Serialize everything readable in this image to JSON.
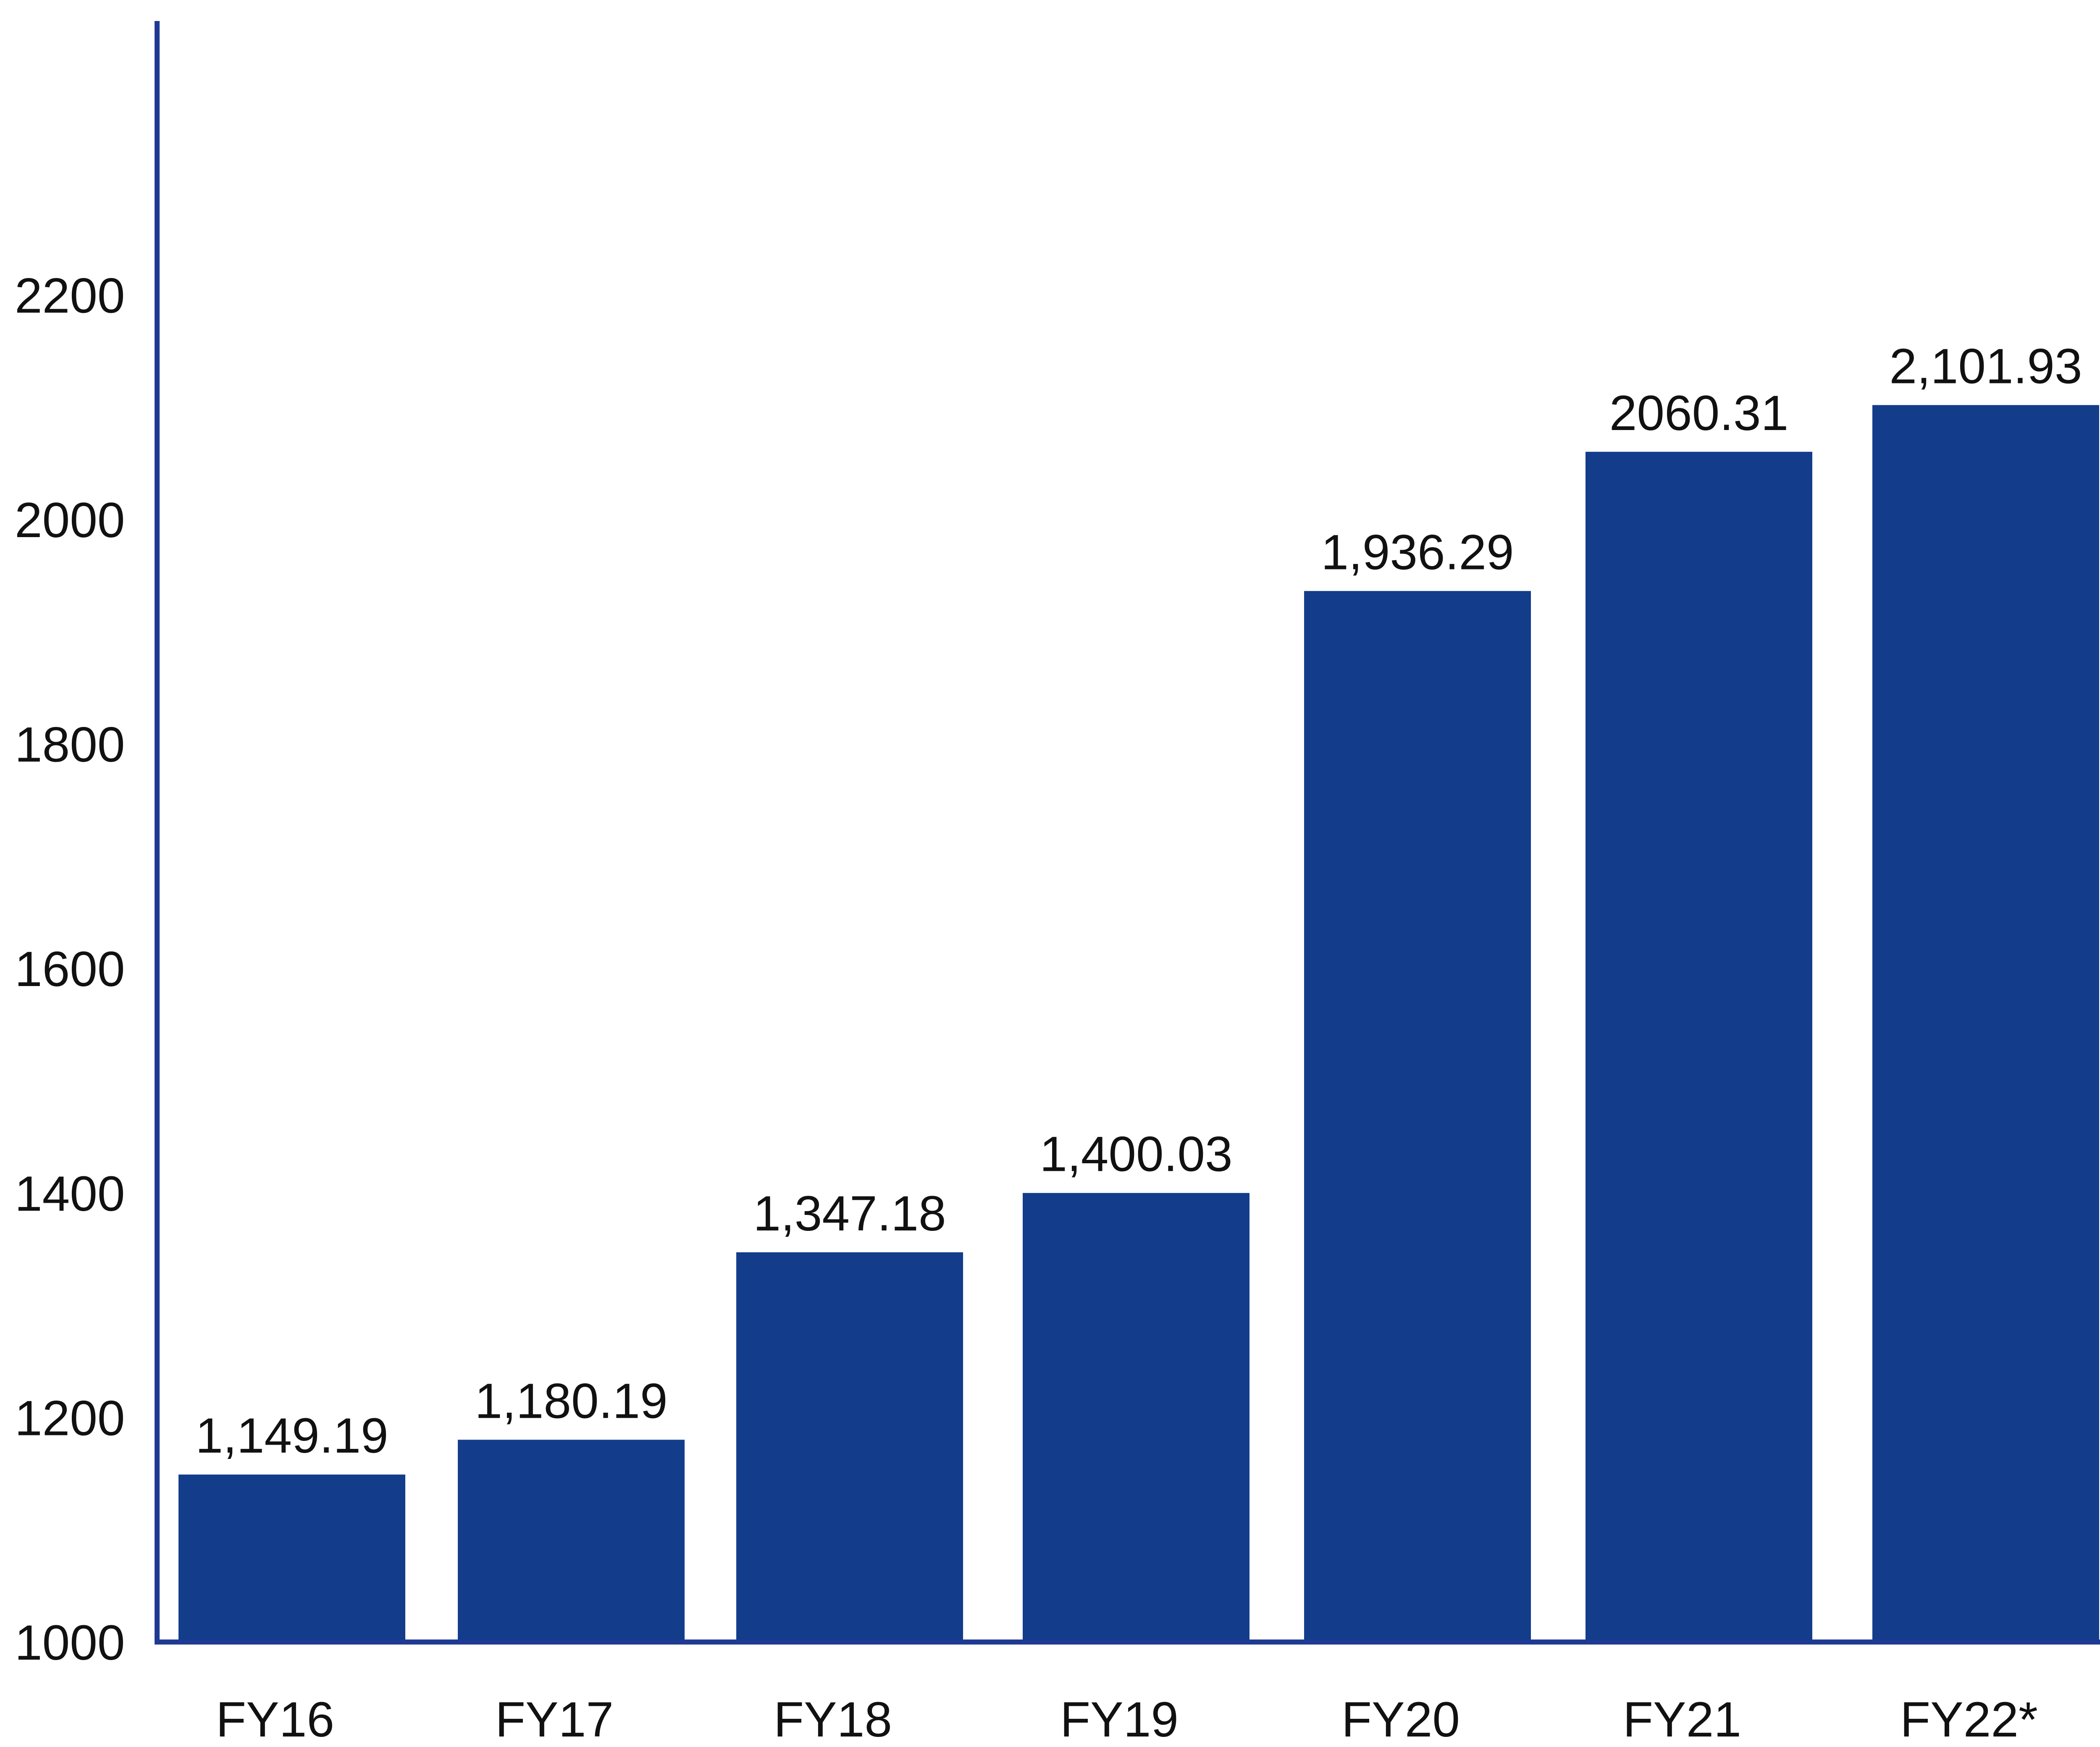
{
  "chart_data": {
    "type": "bar",
    "title": "",
    "xlabel": "",
    "ylabel": "",
    "categories": [
      "FY16",
      "FY17",
      "FY18",
      "FY19",
      "FY20",
      "FY21",
      "FY22*"
    ],
    "values": [
      1149.19,
      1180.19,
      1347.18,
      1400.03,
      1936.29,
      2060.31,
      2101.93
    ],
    "data_labels": [
      "1,149.19",
      "1,180.19",
      "1,347.18",
      "1,400.03",
      "1,936.29",
      "2060.31",
      "2,101.93"
    ],
    "y_ticks": [
      1000,
      1200,
      1400,
      1600,
      1800,
      2000,
      2200
    ],
    "y_tick_labels": [
      "1000",
      "1200",
      "1400",
      "1600",
      "1800",
      "2000",
      "2200"
    ],
    "ylim": [
      1000,
      2420
    ],
    "grid": false,
    "legend": "none",
    "colors": {
      "bar": "#133C8B",
      "axis": "#1F3A93",
      "text": "#111111"
    }
  }
}
